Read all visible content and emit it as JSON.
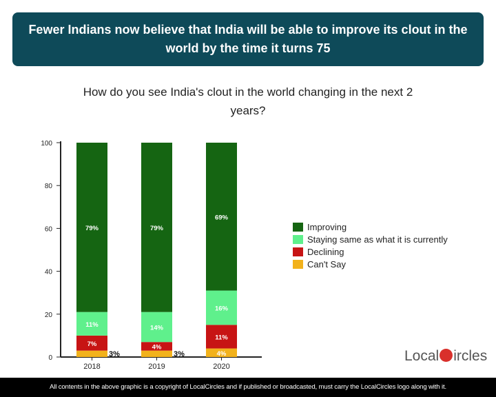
{
  "title": "Fewer Indians now believe that India will be able to improve its clout in the world by the time it turns 75",
  "chart_data": {
    "type": "bar",
    "stacked": true,
    "title": "How do you see India's clout in the world changing in the next 2 years?",
    "categories": [
      "2018",
      "2019",
      "2020"
    ],
    "ylim": [
      0,
      100
    ],
    "yticks": [
      0,
      20,
      40,
      60,
      80,
      100
    ],
    "grid": false,
    "legend_position": "right",
    "series": [
      {
        "name": "Can't Say",
        "color": "#f2b21c",
        "values": [
          3,
          3,
          4
        ],
        "labels": [
          "3%",
          "3%",
          "4%"
        ]
      },
      {
        "name": "Declining",
        "color": "#c71414",
        "values": [
          7,
          4,
          11
        ],
        "labels": [
          "7%",
          "4%",
          "11%"
        ]
      },
      {
        "name": "Staying same as what it is currently",
        "color": "#5ff08c",
        "values": [
          11,
          14,
          16
        ],
        "labels": [
          "11%",
          "14%",
          "16%"
        ]
      },
      {
        "name": "Improving",
        "color": "#156512",
        "values": [
          79,
          79,
          69
        ],
        "labels": [
          "79%",
          "79%",
          "69%"
        ]
      }
    ]
  },
  "legend_order": [
    3,
    2,
    1,
    0
  ],
  "logo": {
    "text_left": "Local",
    "text_right": "ircles"
  },
  "footer": "All contents in the above graphic is a copyright of LocalCircles and if published or broadcasted, must carry the LocalCircles logo along with it."
}
